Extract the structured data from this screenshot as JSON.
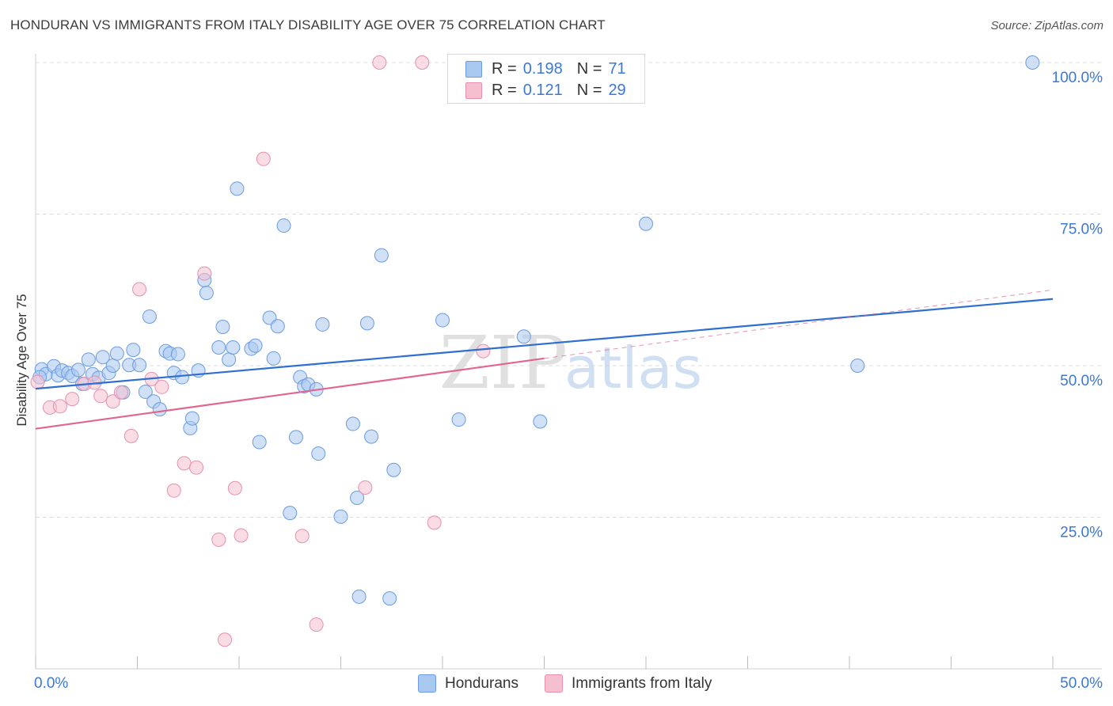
{
  "title": "HONDURAN VS IMMIGRANTS FROM ITALY DISABILITY AGE OVER 75 CORRELATION CHART",
  "source": "Source: ZipAtlas.com",
  "watermark": {
    "part1": "ZIP",
    "part2": "atlas"
  },
  "legend_box": {
    "rows": [
      {
        "r_label": "R =",
        "r_value": "0.198",
        "n_label": "N =",
        "n_value": "71"
      },
      {
        "r_label": "R =",
        "r_value": "0.121",
        "n_label": "N =",
        "n_value": "29"
      }
    ]
  },
  "bottom_legend": {
    "series1": "Hondurans",
    "series2": "Immigrants from Italy"
  },
  "colors": {
    "blue_fill": "#a9c8f0",
    "blue_stroke": "#6a9be0",
    "blue_line": "#2f6fcf",
    "pink_fill": "#f6bfd0",
    "pink_stroke": "#e890ad",
    "pink_line": "#e0668f",
    "tick_text": "#3a78d8",
    "grid": "#dddddd"
  },
  "chart_data": {
    "type": "scatter",
    "title": "HONDURAN VS IMMIGRANTS FROM ITALY DISABILITY AGE OVER 75 CORRELATION CHART",
    "xlabel": "",
    "ylabel": "Disability Age Over 75",
    "xlim": [
      0,
      50
    ],
    "ylim": [
      0,
      100
    ],
    "x_tick_labels": [
      "0.0%",
      "50.0%"
    ],
    "y_ticks": [
      25,
      50,
      75,
      100
    ],
    "y_tick_labels": [
      "25.0%",
      "50.0%",
      "75.0%",
      "100.0%"
    ],
    "grid": true,
    "series": [
      {
        "name": "Hondurans",
        "R": 0.198,
        "N": 71,
        "trend": {
          "x": [
            0,
            50
          ],
          "y": [
            46.2,
            61.0
          ]
        },
        "points": [
          [
            0.3,
            49.4
          ],
          [
            0.5,
            48.6
          ],
          [
            0.9,
            49.9
          ],
          [
            1.1,
            48.4
          ],
          [
            1.3,
            49.2
          ],
          [
            1.6,
            48.8
          ],
          [
            1.8,
            48.3
          ],
          [
            2.1,
            49.3
          ],
          [
            2.3,
            47.0
          ],
          [
            2.6,
            51.0
          ],
          [
            2.8,
            48.6
          ],
          [
            3.1,
            48.0
          ],
          [
            3.3,
            51.4
          ],
          [
            3.6,
            48.8
          ],
          [
            3.8,
            50.0
          ],
          [
            4.0,
            52.0
          ],
          [
            4.3,
            45.6
          ],
          [
            4.6,
            50.1
          ],
          [
            4.8,
            52.6
          ],
          [
            5.1,
            50.1
          ],
          [
            5.4,
            45.7
          ],
          [
            5.6,
            58.1
          ],
          [
            5.8,
            44.1
          ],
          [
            6.1,
            42.8
          ],
          [
            6.4,
            52.4
          ],
          [
            6.6,
            52.0
          ],
          [
            6.8,
            48.8
          ],
          [
            7.0,
            51.9
          ],
          [
            7.2,
            48.1
          ],
          [
            7.6,
            39.7
          ],
          [
            7.7,
            41.3
          ],
          [
            8.0,
            49.2
          ],
          [
            8.3,
            64.1
          ],
          [
            8.4,
            62.0
          ],
          [
            9.0,
            53.0
          ],
          [
            9.2,
            56.4
          ],
          [
            9.5,
            51.0
          ],
          [
            9.7,
            53.0
          ],
          [
            9.9,
            79.2
          ],
          [
            10.6,
            52.8
          ],
          [
            10.8,
            53.3
          ],
          [
            11.0,
            37.4
          ],
          [
            11.5,
            57.9
          ],
          [
            11.7,
            51.2
          ],
          [
            11.9,
            56.5
          ],
          [
            12.2,
            73.1
          ],
          [
            12.5,
            25.7
          ],
          [
            12.8,
            38.2
          ],
          [
            13.0,
            48.1
          ],
          [
            13.2,
            46.6
          ],
          [
            13.4,
            46.9
          ],
          [
            13.8,
            46.1
          ],
          [
            13.9,
            35.5
          ],
          [
            14.1,
            56.8
          ],
          [
            15.0,
            25.1
          ],
          [
            15.6,
            40.4
          ],
          [
            15.8,
            28.2
          ],
          [
            15.9,
            11.9
          ],
          [
            16.3,
            57.0
          ],
          [
            16.5,
            38.3
          ],
          [
            17.0,
            68.2
          ],
          [
            17.4,
            11.6
          ],
          [
            17.6,
            32.8
          ],
          [
            20.0,
            57.5
          ],
          [
            20.8,
            41.1
          ],
          [
            24.0,
            54.8
          ],
          [
            24.8,
            40.8
          ],
          [
            30.0,
            73.4
          ],
          [
            40.4,
            50.0
          ],
          [
            49.0,
            100.0
          ],
          [
            0.2,
            48.1
          ]
        ]
      },
      {
        "name": "Immigrants from Italy",
        "R": 0.121,
        "N": 29,
        "trend": {
          "x": [
            0,
            25
          ],
          "y": [
            39.6,
            51.2
          ]
        },
        "trend_dashed": {
          "x": [
            25,
            50
          ],
          "y": [
            51.2,
            62.5
          ]
        },
        "points": [
          [
            0.1,
            47.3
          ],
          [
            0.7,
            43.1
          ],
          [
            1.2,
            43.3
          ],
          [
            1.8,
            44.5
          ],
          [
            2.4,
            47.0
          ],
          [
            2.9,
            47.2
          ],
          [
            3.2,
            45.0
          ],
          [
            3.8,
            44.1
          ],
          [
            4.2,
            45.6
          ],
          [
            4.7,
            38.4
          ],
          [
            5.1,
            62.6
          ],
          [
            5.7,
            47.8
          ],
          [
            6.2,
            46.5
          ],
          [
            6.8,
            29.4
          ],
          [
            7.3,
            33.9
          ],
          [
            7.9,
            33.2
          ],
          [
            8.3,
            65.2
          ],
          [
            9.0,
            21.3
          ],
          [
            9.3,
            4.8
          ],
          [
            9.8,
            29.8
          ],
          [
            10.1,
            22.0
          ],
          [
            11.2,
            84.1
          ],
          [
            13.1,
            21.9
          ],
          [
            13.8,
            7.3
          ],
          [
            16.2,
            29.9
          ],
          [
            16.9,
            100.0
          ],
          [
            19.0,
            100.0
          ],
          [
            19.6,
            24.1
          ],
          [
            22.0,
            52.4
          ]
        ]
      }
    ]
  }
}
